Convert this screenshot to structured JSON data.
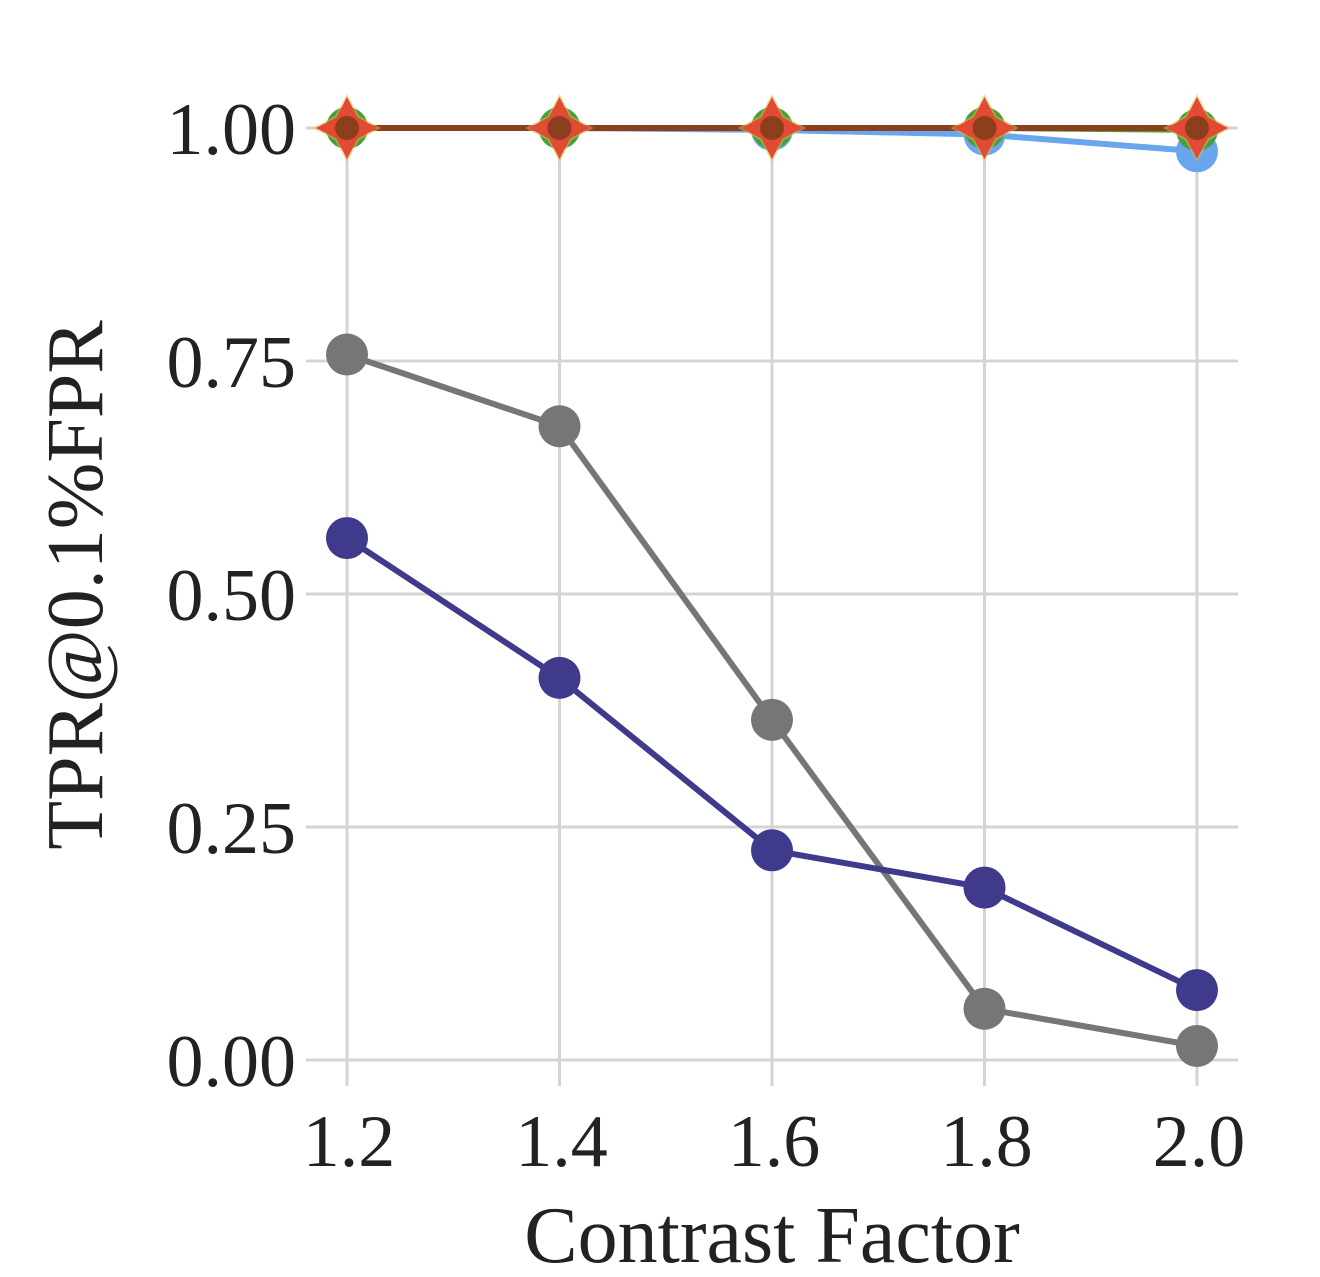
{
  "chart_data": {
    "type": "line",
    "title": "",
    "xlabel": "Contrast Factor",
    "ylabel": "TPR@0.1%FPR",
    "x": [
      1.2,
      1.4,
      1.6,
      1.8,
      2.0
    ],
    "x_tick_labels": [
      "1.2",
      "1.4",
      "1.6",
      "1.8",
      "2.0"
    ],
    "y_ticks": [
      0.0,
      0.25,
      0.5,
      0.75,
      1.0
    ],
    "y_tick_labels": [
      "0.00",
      "0.25",
      "0.50",
      "0.75",
      "1.00"
    ],
    "xlim": [
      1.2,
      2.0
    ],
    "ylim": [
      0.0,
      1.0
    ],
    "grid": true,
    "legend": "none",
    "series": [
      {
        "values": [
          0.757,
          0.68,
          0.365,
          0.055,
          0.015
        ],
        "color": "#767676",
        "marker": "circle"
      },
      {
        "values": [
          0.56,
          0.41,
          0.225,
          0.185,
          0.075
        ],
        "color": "#3f3a8c",
        "marker": "circle"
      },
      {
        "values": [
          1.0,
          1.0,
          0.998,
          0.993,
          0.975
        ],
        "color": "#6aa6ee",
        "marker": "circle"
      },
      {
        "values": [
          1.0,
          1.0,
          1.0,
          1.0,
          0.998
        ],
        "color": "#4f9a3a",
        "marker": "circle"
      },
      {
        "values": [
          1.0,
          1.0,
          1.0,
          1.0,
          1.0
        ],
        "color": "#8b3f1d",
        "marker": "star"
      }
    ],
    "colors": {
      "star_fill": "#e34a33",
      "star_glow": "#d9c24a"
    }
  }
}
